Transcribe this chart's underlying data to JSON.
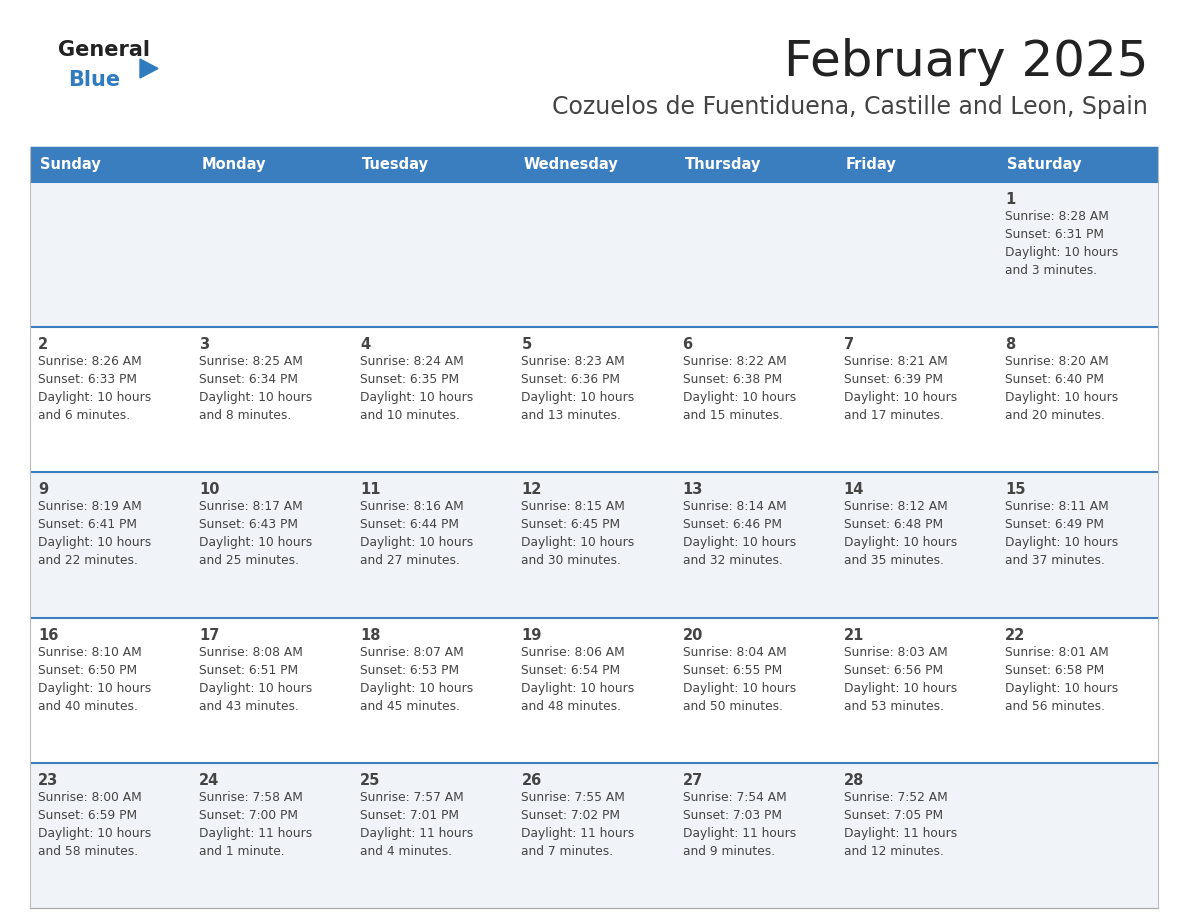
{
  "title": "February 2025",
  "subtitle": "Cozuelos de Fuentiduena, Castille and Leon, Spain",
  "days_of_week": [
    "Sunday",
    "Monday",
    "Tuesday",
    "Wednesday",
    "Thursday",
    "Friday",
    "Saturday"
  ],
  "header_bg": "#3a7ebf",
  "header_text": "#ffffff",
  "cell_bg_odd": "#f0f4f8",
  "cell_bg_even": "#ffffff",
  "cell_text": "#444444",
  "border_color": "#3a7ebf",
  "title_color": "#222222",
  "subtitle_color": "#444444",
  "logo_general_color": "#222222",
  "logo_blue_color": "#2e7cbf",
  "calendar": [
    [
      null,
      null,
      null,
      null,
      null,
      null,
      {
        "day": "1",
        "sunrise": "8:28 AM",
        "sunset": "6:31 PM",
        "daylight_line1": "Daylight: 10 hours",
        "daylight_line2": "and 3 minutes."
      }
    ],
    [
      {
        "day": "2",
        "sunrise": "8:26 AM",
        "sunset": "6:33 PM",
        "daylight_line1": "Daylight: 10 hours",
        "daylight_line2": "and 6 minutes."
      },
      {
        "day": "3",
        "sunrise": "8:25 AM",
        "sunset": "6:34 PM",
        "daylight_line1": "Daylight: 10 hours",
        "daylight_line2": "and 8 minutes."
      },
      {
        "day": "4",
        "sunrise": "8:24 AM",
        "sunset": "6:35 PM",
        "daylight_line1": "Daylight: 10 hours",
        "daylight_line2": "and 10 minutes."
      },
      {
        "day": "5",
        "sunrise": "8:23 AM",
        "sunset": "6:36 PM",
        "daylight_line1": "Daylight: 10 hours",
        "daylight_line2": "and 13 minutes."
      },
      {
        "day": "6",
        "sunrise": "8:22 AM",
        "sunset": "6:38 PM",
        "daylight_line1": "Daylight: 10 hours",
        "daylight_line2": "and 15 minutes."
      },
      {
        "day": "7",
        "sunrise": "8:21 AM",
        "sunset": "6:39 PM",
        "daylight_line1": "Daylight: 10 hours",
        "daylight_line2": "and 17 minutes."
      },
      {
        "day": "8",
        "sunrise": "8:20 AM",
        "sunset": "6:40 PM",
        "daylight_line1": "Daylight: 10 hours",
        "daylight_line2": "and 20 minutes."
      }
    ],
    [
      {
        "day": "9",
        "sunrise": "8:19 AM",
        "sunset": "6:41 PM",
        "daylight_line1": "Daylight: 10 hours",
        "daylight_line2": "and 22 minutes."
      },
      {
        "day": "10",
        "sunrise": "8:17 AM",
        "sunset": "6:43 PM",
        "daylight_line1": "Daylight: 10 hours",
        "daylight_line2": "and 25 minutes."
      },
      {
        "day": "11",
        "sunrise": "8:16 AM",
        "sunset": "6:44 PM",
        "daylight_line1": "Daylight: 10 hours",
        "daylight_line2": "and 27 minutes."
      },
      {
        "day": "12",
        "sunrise": "8:15 AM",
        "sunset": "6:45 PM",
        "daylight_line1": "Daylight: 10 hours",
        "daylight_line2": "and 30 minutes."
      },
      {
        "day": "13",
        "sunrise": "8:14 AM",
        "sunset": "6:46 PM",
        "daylight_line1": "Daylight: 10 hours",
        "daylight_line2": "and 32 minutes."
      },
      {
        "day": "14",
        "sunrise": "8:12 AM",
        "sunset": "6:48 PM",
        "daylight_line1": "Daylight: 10 hours",
        "daylight_line2": "and 35 minutes."
      },
      {
        "day": "15",
        "sunrise": "8:11 AM",
        "sunset": "6:49 PM",
        "daylight_line1": "Daylight: 10 hours",
        "daylight_line2": "and 37 minutes."
      }
    ],
    [
      {
        "day": "16",
        "sunrise": "8:10 AM",
        "sunset": "6:50 PM",
        "daylight_line1": "Daylight: 10 hours",
        "daylight_line2": "and 40 minutes."
      },
      {
        "day": "17",
        "sunrise": "8:08 AM",
        "sunset": "6:51 PM",
        "daylight_line1": "Daylight: 10 hours",
        "daylight_line2": "and 43 minutes."
      },
      {
        "day": "18",
        "sunrise": "8:07 AM",
        "sunset": "6:53 PM",
        "daylight_line1": "Daylight: 10 hours",
        "daylight_line2": "and 45 minutes."
      },
      {
        "day": "19",
        "sunrise": "8:06 AM",
        "sunset": "6:54 PM",
        "daylight_line1": "Daylight: 10 hours",
        "daylight_line2": "and 48 minutes."
      },
      {
        "day": "20",
        "sunrise": "8:04 AM",
        "sunset": "6:55 PM",
        "daylight_line1": "Daylight: 10 hours",
        "daylight_line2": "and 50 minutes."
      },
      {
        "day": "21",
        "sunrise": "8:03 AM",
        "sunset": "6:56 PM",
        "daylight_line1": "Daylight: 10 hours",
        "daylight_line2": "and 53 minutes."
      },
      {
        "day": "22",
        "sunrise": "8:01 AM",
        "sunset": "6:58 PM",
        "daylight_line1": "Daylight: 10 hours",
        "daylight_line2": "and 56 minutes."
      }
    ],
    [
      {
        "day": "23",
        "sunrise": "8:00 AM",
        "sunset": "6:59 PM",
        "daylight_line1": "Daylight: 10 hours",
        "daylight_line2": "and 58 minutes."
      },
      {
        "day": "24",
        "sunrise": "7:58 AM",
        "sunset": "7:00 PM",
        "daylight_line1": "Daylight: 11 hours",
        "daylight_line2": "and 1 minute."
      },
      {
        "day": "25",
        "sunrise": "7:57 AM",
        "sunset": "7:01 PM",
        "daylight_line1": "Daylight: 11 hours",
        "daylight_line2": "and 4 minutes."
      },
      {
        "day": "26",
        "sunrise": "7:55 AM",
        "sunset": "7:02 PM",
        "daylight_line1": "Daylight: 11 hours",
        "daylight_line2": "and 7 minutes."
      },
      {
        "day": "27",
        "sunrise": "7:54 AM",
        "sunset": "7:03 PM",
        "daylight_line1": "Daylight: 11 hours",
        "daylight_line2": "and 9 minutes."
      },
      {
        "day": "28",
        "sunrise": "7:52 AM",
        "sunset": "7:05 PM",
        "daylight_line1": "Daylight: 11 hours",
        "daylight_line2": "and 12 minutes."
      },
      null
    ]
  ]
}
